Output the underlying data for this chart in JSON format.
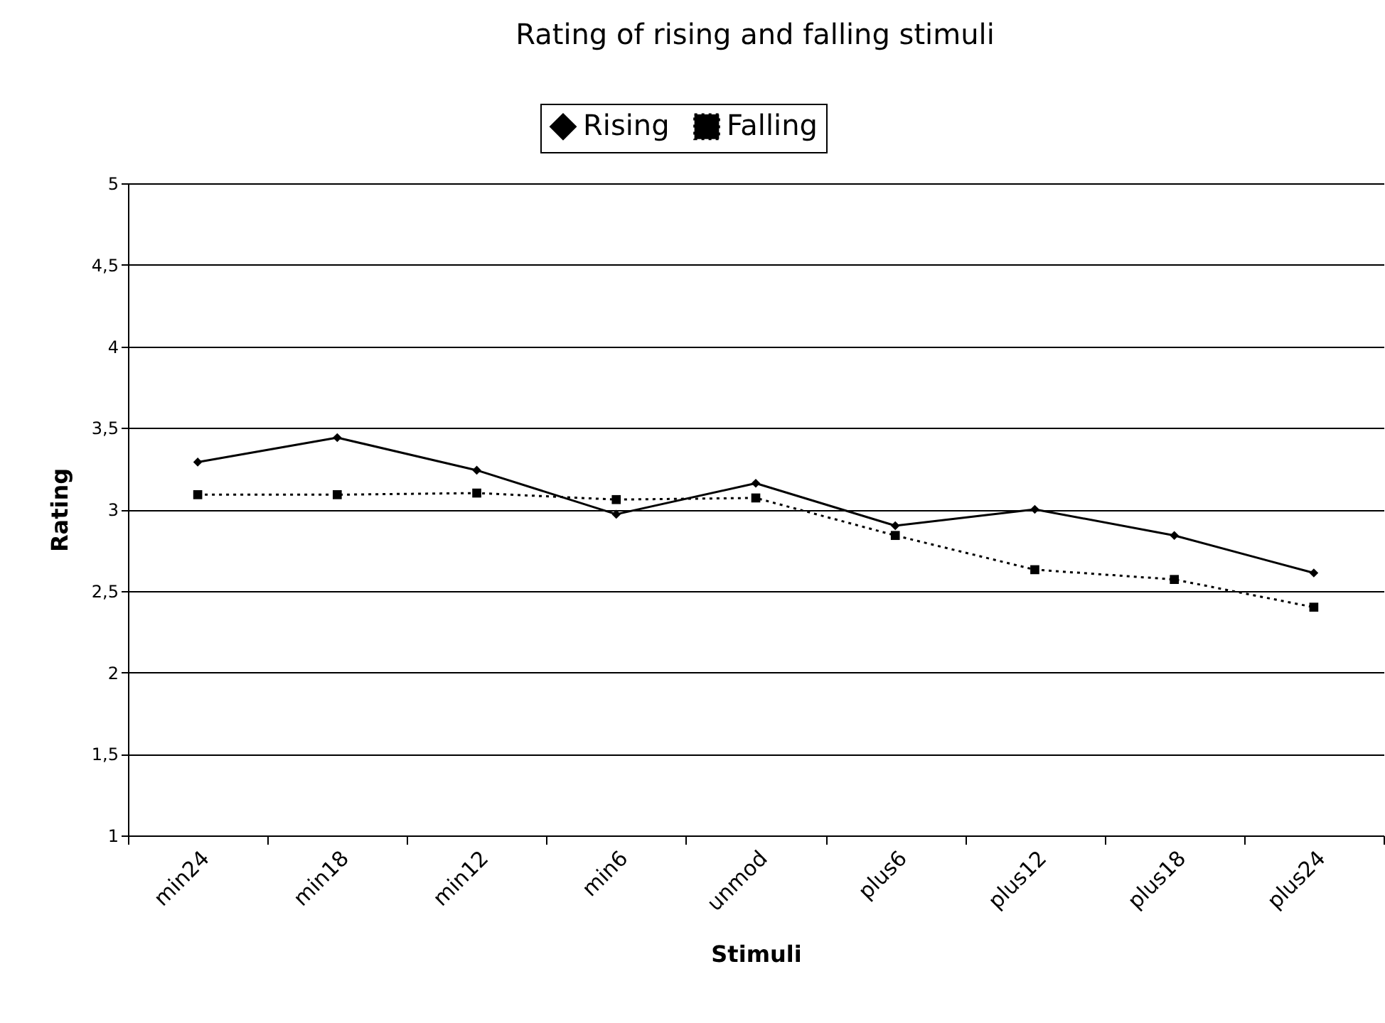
{
  "chart_data": {
    "type": "line",
    "title": "Rating of rising and falling stimuli",
    "xlabel": "Stimuli",
    "ylabel": "Rating",
    "categories": [
      "min24",
      "min18",
      "min12",
      "min6",
      "unmod",
      "plus6",
      "plus12",
      "plus18",
      "plus24"
    ],
    "series": [
      {
        "name": "Rising",
        "color": "#000000",
        "marker": "diamond",
        "line_style": "solid",
        "values": [
          3.29,
          3.44,
          3.24,
          2.97,
          3.16,
          2.9,
          3.0,
          2.84,
          2.61
        ]
      },
      {
        "name": "Falling",
        "color": "#000000",
        "marker": "square",
        "line_style": "dotted",
        "values": [
          3.09,
          3.09,
          3.1,
          3.06,
          3.07,
          2.84,
          2.63,
          2.57,
          2.4
        ]
      }
    ],
    "ylim": [
      1,
      5
    ],
    "yticks": [
      {
        "value": 1,
        "label": "1"
      },
      {
        "value": 1.5,
        "label": "1,5"
      },
      {
        "value": 2,
        "label": "2"
      },
      {
        "value": 2.5,
        "label": "2,5"
      },
      {
        "value": 3,
        "label": "3"
      },
      {
        "value": 3.5,
        "label": "3,5"
      },
      {
        "value": 4,
        "label": "4"
      },
      {
        "value": 4.5,
        "label": "4,5"
      },
      {
        "value": 5,
        "label": "5"
      }
    ],
    "grid": "y",
    "legend": "top"
  }
}
